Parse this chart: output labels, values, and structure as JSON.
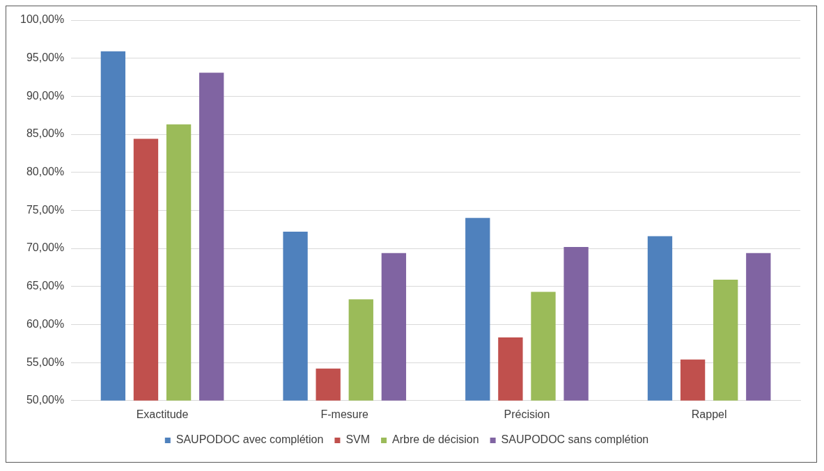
{
  "chart_data": {
    "type": "bar",
    "categories": [
      "Exactitude",
      "F-mesure",
      "Précision",
      "Rappel"
    ],
    "series": [
      {
        "name": "SAUPODOC avec complétion",
        "color": "#4f81bd",
        "values": [
          95.9,
          72.2,
          74.0,
          71.6
        ]
      },
      {
        "name": "SVM",
        "color": "#c0504d",
        "values": [
          84.4,
          54.2,
          58.3,
          55.4
        ]
      },
      {
        "name": "Arbre de décision",
        "color": "#9bbb59",
        "values": [
          86.3,
          63.3,
          64.3,
          65.9
        ]
      },
      {
        "name": "SAUPODOC sans complétion",
        "color": "#8064a2",
        "values": [
          93.1,
          69.4,
          70.2,
          69.4
        ]
      }
    ],
    "ylim": [
      50,
      100
    ],
    "yticks": [
      {
        "value": 50,
        "label": "50,00%"
      },
      {
        "value": 55,
        "label": "55,00%"
      },
      {
        "value": 60,
        "label": "60,00%"
      },
      {
        "value": 65,
        "label": "65,00%"
      },
      {
        "value": 70,
        "label": "70,00%"
      },
      {
        "value": 75,
        "label": "75,00%"
      },
      {
        "value": 80,
        "label": "80,00%"
      },
      {
        "value": 85,
        "label": "85,00%"
      },
      {
        "value": 90,
        "label": "90,00%"
      },
      {
        "value": 95,
        "label": "95,00%"
      },
      {
        "value": 100,
        "label": "100,00%"
      }
    ],
    "grid": "y",
    "legend": "bottom"
  }
}
